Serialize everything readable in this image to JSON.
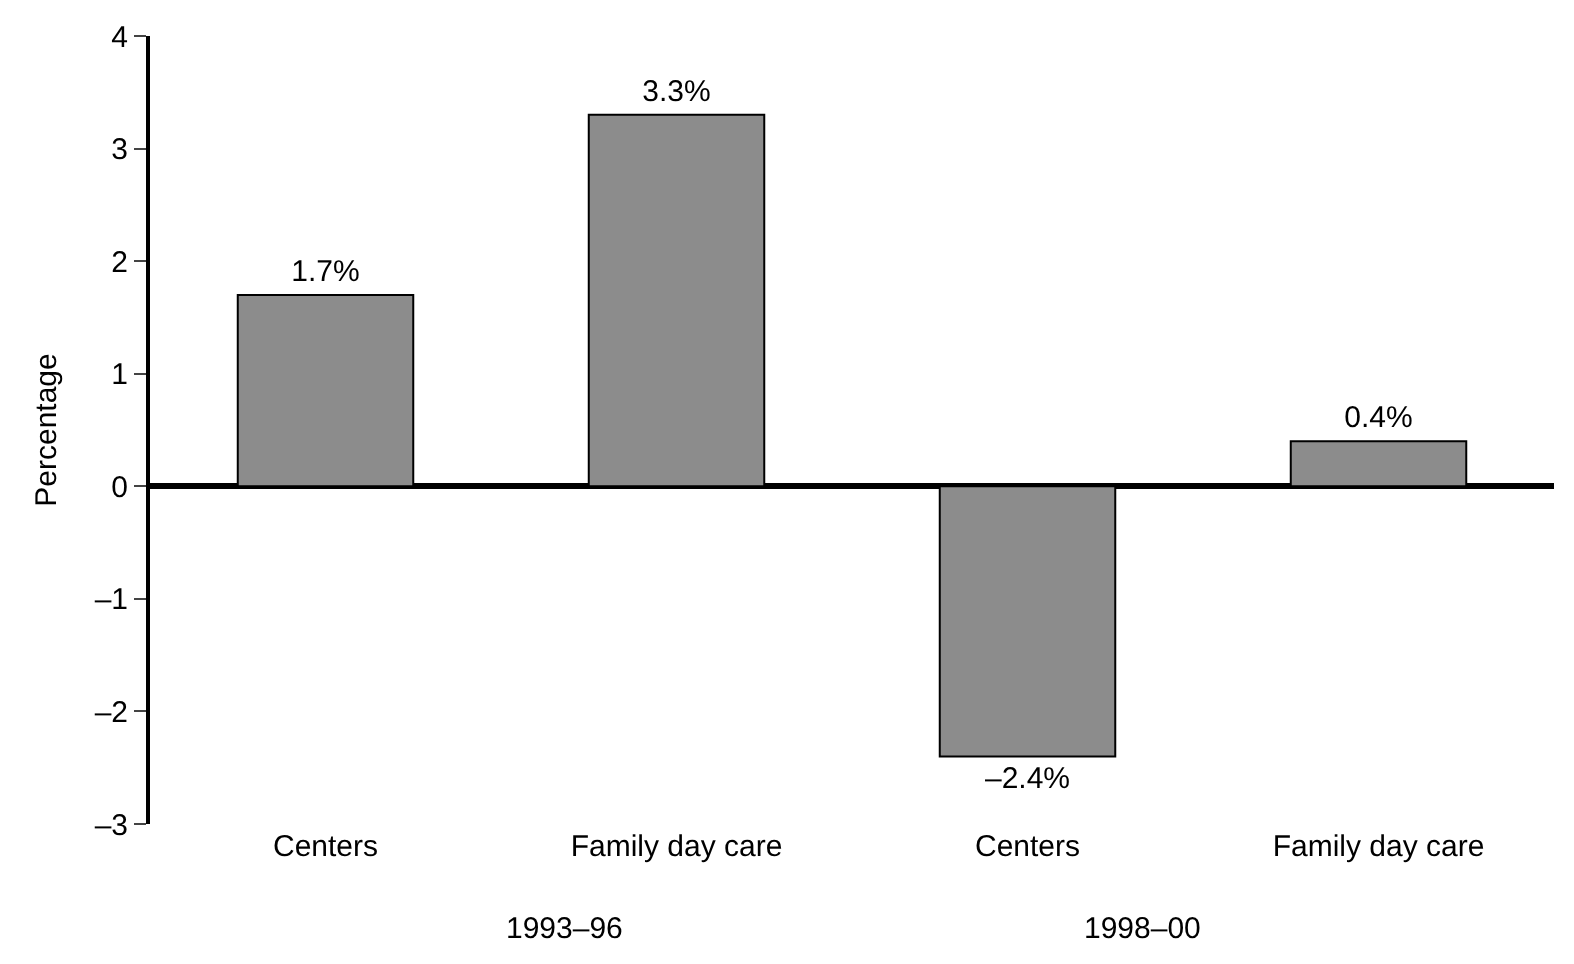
{
  "chart_data": {
    "type": "bar",
    "ylabel": "Percentage",
    "categories": [
      "Centers",
      "Family day care",
      "Centers",
      "Family day care"
    ],
    "values": [
      1.7,
      3.3,
      -2.4,
      0.4
    ],
    "value_labels": [
      "1.7%",
      "3.3%",
      "–2.4%",
      "0.4%"
    ],
    "color": "#8c8c8c",
    "ylim": [
      -3,
      4
    ],
    "yticks": [
      {
        "value": -3,
        "label": "–3"
      },
      {
        "value": -2,
        "label": "–2"
      },
      {
        "value": -1,
        "label": "–1"
      },
      0,
      1,
      2,
      3,
      4
    ],
    "annotations": [
      "1993–96",
      "1998–00"
    ],
    "legend": false
  }
}
